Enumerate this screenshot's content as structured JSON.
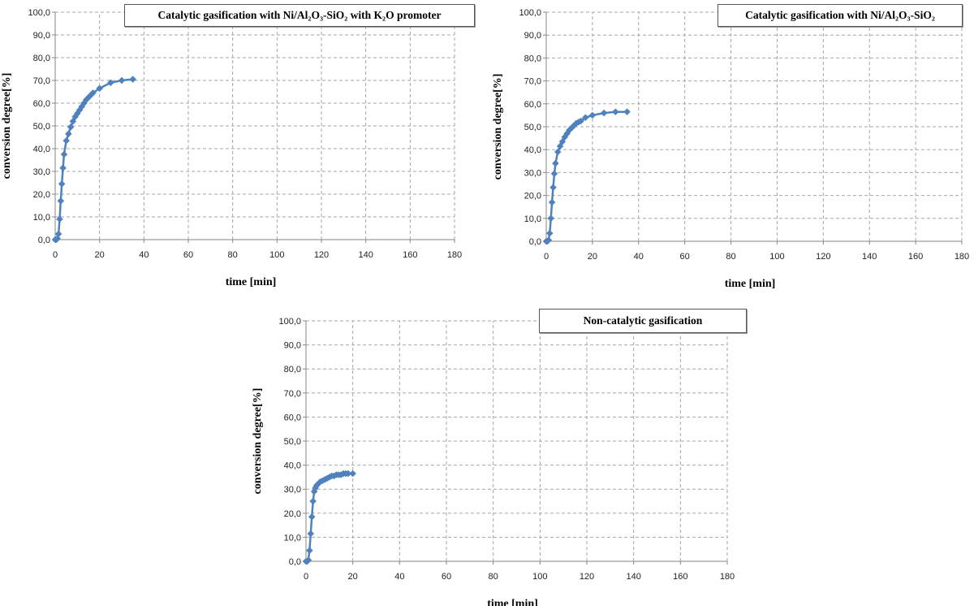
{
  "chart_data": [
    {
      "type": "line",
      "legend": "Catalytic gasification with Ni/Al₂O₃-SiO₂ with K₂O promoter",
      "legend_position": "top-right",
      "xlabel": "time [min]",
      "ylabel": "conversion degree[%]",
      "xlim": [
        0,
        180
      ],
      "ylim": [
        0,
        100
      ],
      "x_ticks": [
        "0",
        "20",
        "40",
        "60",
        "80",
        "100",
        "120",
        "140",
        "160",
        "180"
      ],
      "y_ticks": [
        "0,0",
        "10,0",
        "20,0",
        "30,0",
        "40,0",
        "50,0",
        "60,0",
        "70,0",
        "80,0",
        "90,0",
        "100,0"
      ],
      "grid": true,
      "series": [
        {
          "x": [
            0,
            0.5,
            1,
            1.5,
            2,
            2.5,
            3,
            3.5,
            4,
            5,
            6,
            7,
            8,
            9,
            10,
            11,
            12,
            13,
            14,
            15,
            16,
            17,
            20,
            25,
            30,
            35
          ],
          "y": [
            0,
            0,
            0.5,
            2.5,
            9,
            17,
            24.5,
            31.5,
            37.5,
            43.5,
            46.5,
            49.5,
            52,
            54,
            55.5,
            57,
            58.5,
            60,
            61.5,
            62.5,
            63.5,
            64.5,
            66.5,
            69,
            70,
            70.5
          ]
        }
      ]
    },
    {
      "type": "line",
      "legend": "Catalytic gasification with Ni/Al₂O₃-SiO₂",
      "legend_position": "top-right",
      "xlabel": "time [min]",
      "ylabel": "conversion degree[%]",
      "xlim": [
        0,
        180
      ],
      "ylim": [
        0,
        100
      ],
      "x_ticks": [
        "0",
        "20",
        "40",
        "60",
        "80",
        "100",
        "120",
        "140",
        "160",
        "180"
      ],
      "y_ticks": [
        "0,0",
        "10,0",
        "20,0",
        "30,0",
        "40,0",
        "50,0",
        "60,0",
        "70,0",
        "80,0",
        "90,0",
        "100,0"
      ],
      "grid": true,
      "series": [
        {
          "x": [
            0,
            0.5,
            1,
            1.5,
            2,
            2.5,
            3,
            3.5,
            4,
            5,
            6,
            7,
            8,
            9,
            10,
            11,
            12,
            13,
            14,
            15,
            17,
            20,
            25,
            30,
            35
          ],
          "y": [
            0,
            0,
            0.5,
            3.5,
            10,
            17,
            23.5,
            29.5,
            34,
            39,
            41.5,
            43.5,
            45.5,
            47,
            48.5,
            49.5,
            50.5,
            51.5,
            52,
            52.5,
            54,
            55,
            56,
            56.5,
            56.5
          ]
        }
      ]
    },
    {
      "type": "line",
      "legend": "Non-catalytic gasification",
      "legend_position": "top-right",
      "xlabel": "time [min]",
      "ylabel": "conversion degree[%]",
      "xlim": [
        0,
        180
      ],
      "ylim": [
        0,
        100
      ],
      "x_ticks": [
        "0",
        "20",
        "40",
        "60",
        "80",
        "100",
        "120",
        "140",
        "160",
        "180"
      ],
      "y_ticks": [
        "0,0",
        "10,0",
        "20,0",
        "30,0",
        "40,0",
        "50,0",
        "60,0",
        "70,0",
        "80,0",
        "90,0",
        "100,0"
      ],
      "grid": true,
      "series": [
        {
          "x": [
            0,
            0.5,
            1,
            1.5,
            2,
            2.5,
            3,
            3.5,
            4,
            4.5,
            5,
            6,
            7,
            8,
            9,
            10,
            11,
            12,
            13,
            14,
            15,
            16,
            17,
            18,
            20
          ],
          "y": [
            0,
            0,
            0.5,
            4.5,
            11.5,
            18.5,
            25,
            29,
            30.5,
            31.5,
            32,
            33,
            33.5,
            34,
            34.5,
            35,
            35.5,
            35.5,
            36,
            36,
            36,
            36.5,
            36.5,
            36.5,
            36.5
          ]
        }
      ]
    }
  ]
}
